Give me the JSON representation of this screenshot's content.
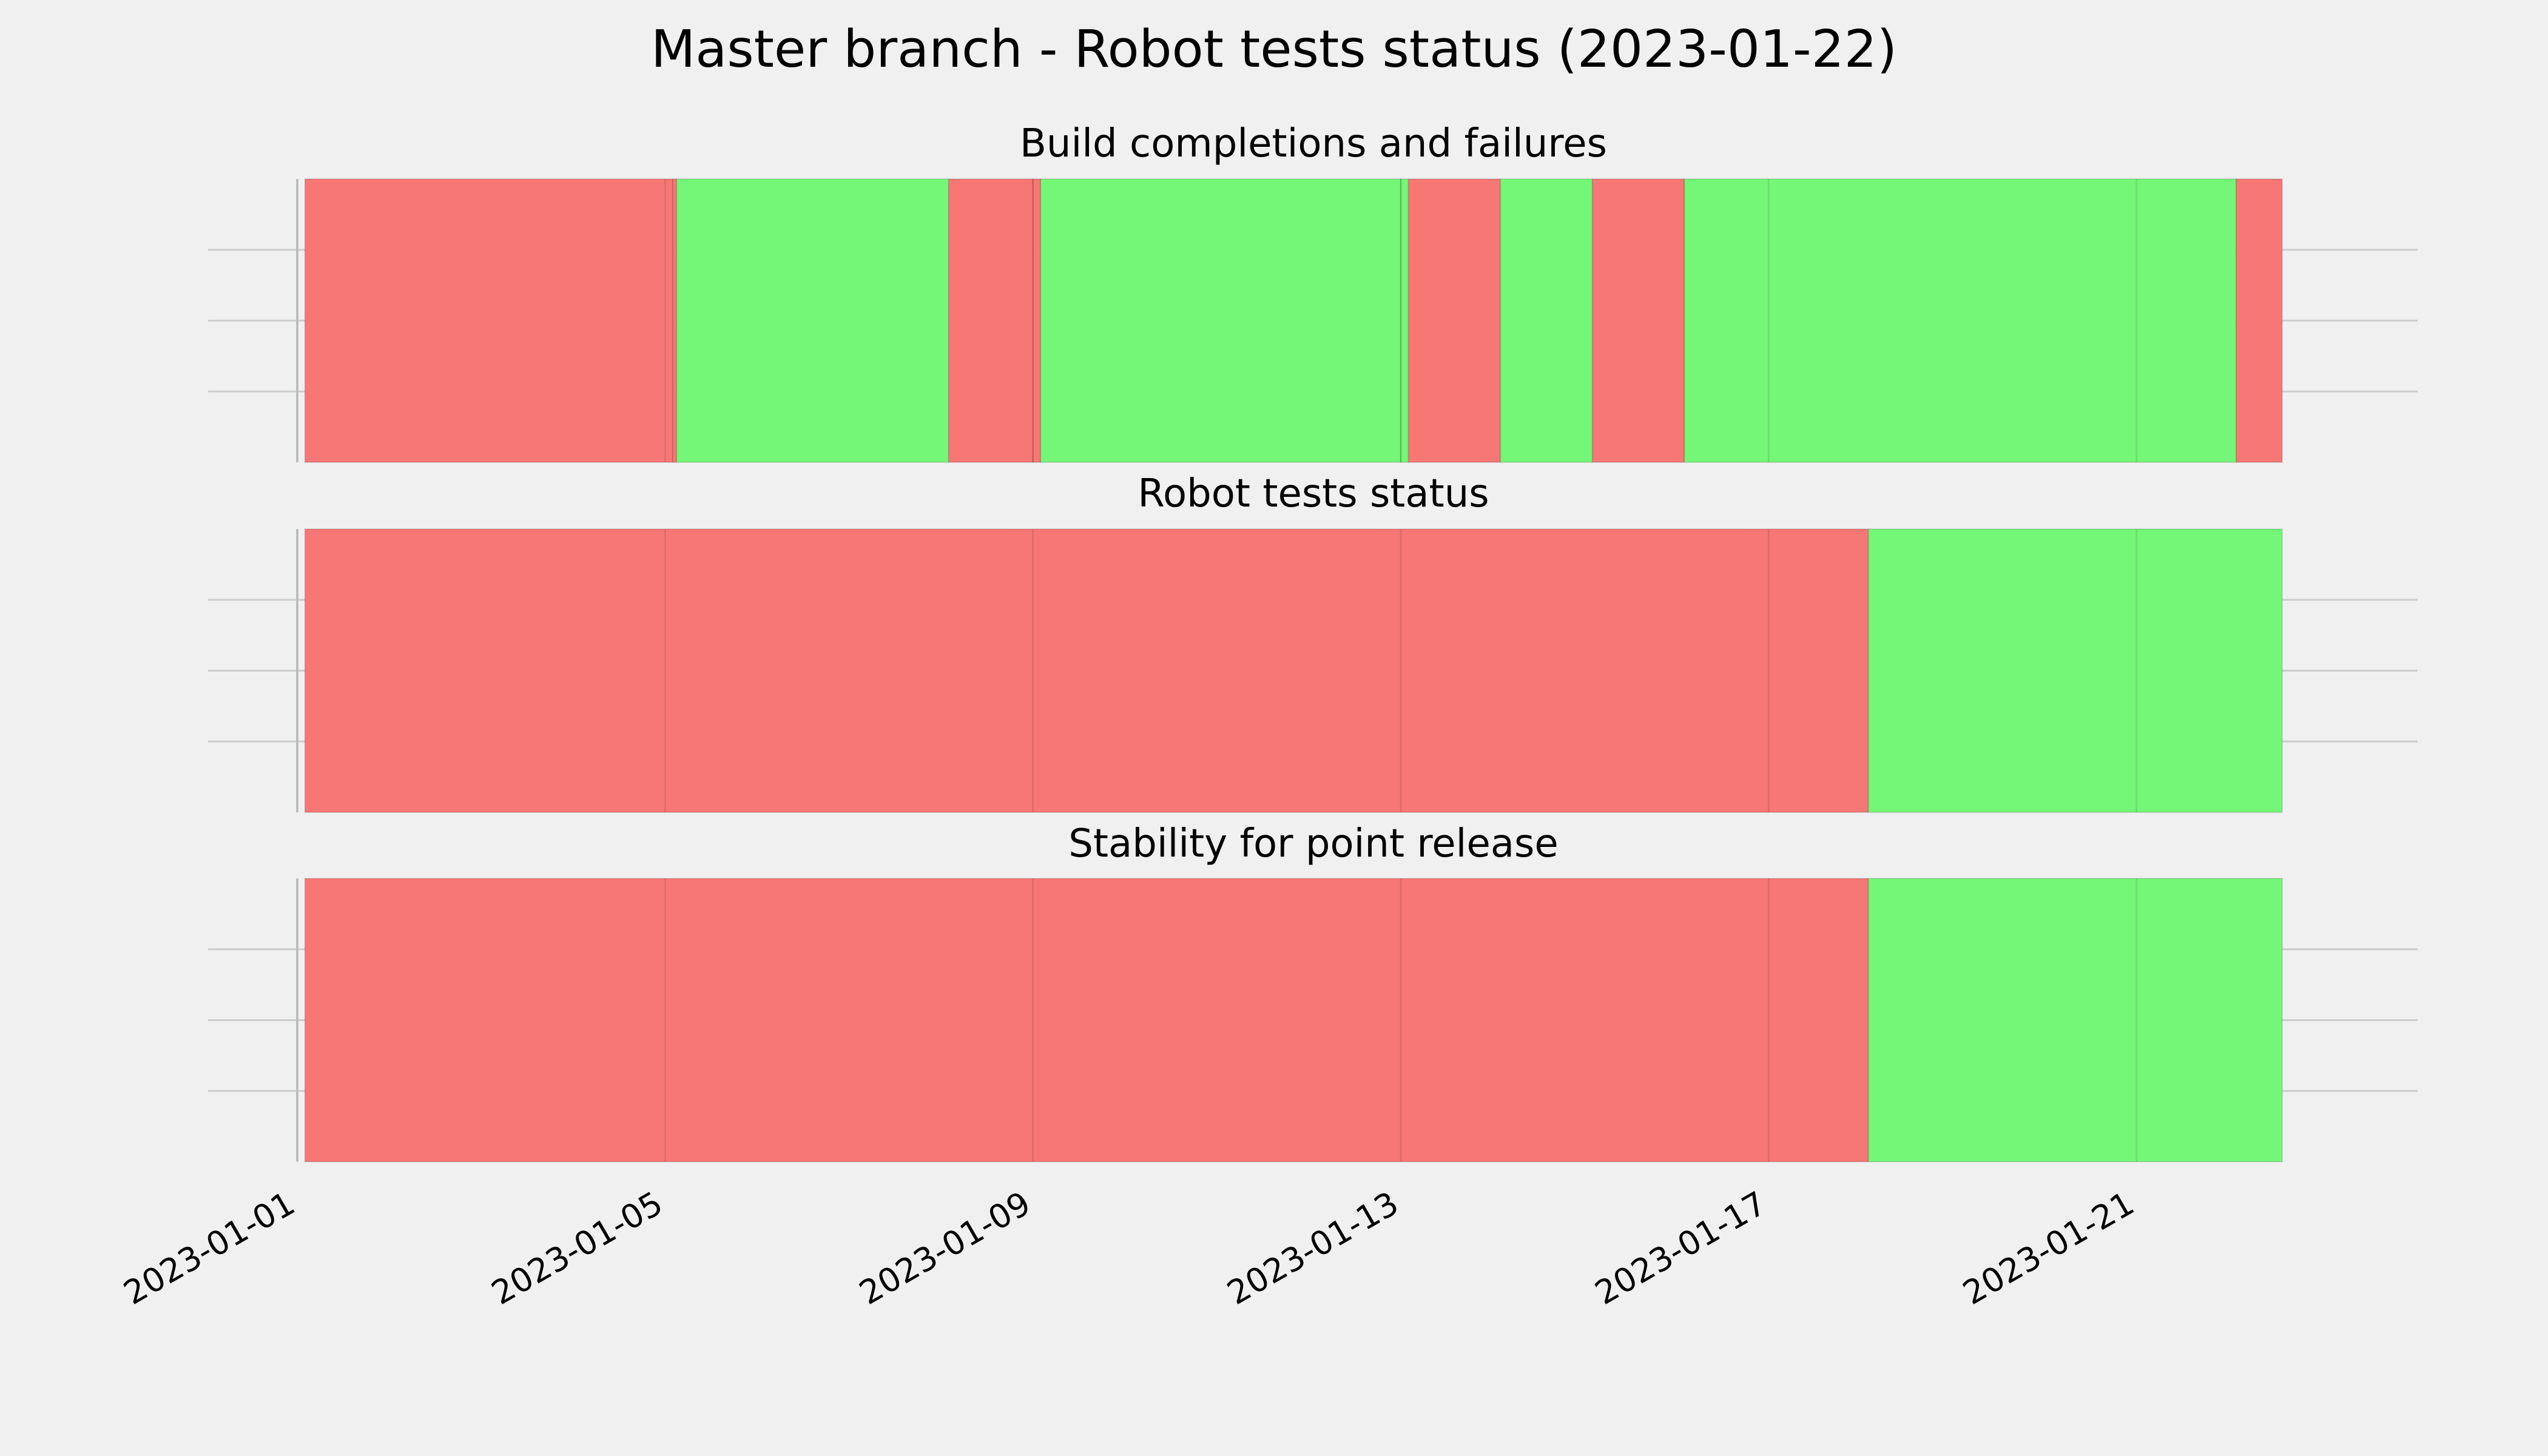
{
  "chart_data": {
    "type": "timeline",
    "title": "Master branch - Robot tests status (2023-01-22)",
    "xlim": [
      "2023-01-01",
      "2023-01-23"
    ],
    "x_ticks": [
      "2023-01-01",
      "2023-01-05",
      "2023-01-09",
      "2023-01-13",
      "2023-01-17",
      "2023-01-21"
    ],
    "grid": true,
    "colors": {
      "fail": "#f77775",
      "pass": "#74f777",
      "background": "#f0f0f0",
      "grid": "#cccccc"
    },
    "panels": [
      {
        "title": "Build completions and failures",
        "segments": [
          {
            "start": "2023-01-01 02:00",
            "end": "2023-01-05 02:00",
            "status": "fail"
          },
          {
            "start": "2023-01-05 02:00",
            "end": "2023-01-05 03:00",
            "status": "fail"
          },
          {
            "start": "2023-01-05 03:00",
            "end": "2023-01-08 02:00",
            "status": "pass"
          },
          {
            "start": "2023-01-08 02:00",
            "end": "2023-01-09 00:00",
            "status": "fail"
          },
          {
            "start": "2023-01-09 00:00",
            "end": "2023-01-09 02:00",
            "status": "fail"
          },
          {
            "start": "2023-01-09 02:00",
            "end": "2023-01-13 00:00",
            "status": "pass"
          },
          {
            "start": "2023-01-13 00:00",
            "end": "2023-01-13 02:00",
            "status": "pass"
          },
          {
            "start": "2023-01-13 02:00",
            "end": "2023-01-14 02:00",
            "status": "fail"
          },
          {
            "start": "2023-01-14 02:00",
            "end": "2023-01-15 02:00",
            "status": "pass"
          },
          {
            "start": "2023-01-15 02:00",
            "end": "2023-01-16 02:00",
            "status": "fail"
          },
          {
            "start": "2023-01-16 02:00",
            "end": "2023-01-22 02:00",
            "status": "pass"
          },
          {
            "start": "2023-01-22 02:00",
            "end": "2023-01-22 14:00",
            "status": "fail"
          }
        ]
      },
      {
        "title": "Robot tests status",
        "segments": [
          {
            "start": "2023-01-01 02:00",
            "end": "2023-01-18 02:00",
            "status": "fail"
          },
          {
            "start": "2023-01-18 02:00",
            "end": "2023-01-22 14:00",
            "status": "pass"
          }
        ]
      },
      {
        "title": "Stability for point release",
        "segments": [
          {
            "start": "2023-01-01 02:00",
            "end": "2023-01-18 02:00",
            "status": "fail"
          },
          {
            "start": "2023-01-18 02:00",
            "end": "2023-01-22 14:00",
            "status": "pass"
          }
        ]
      }
    ]
  }
}
